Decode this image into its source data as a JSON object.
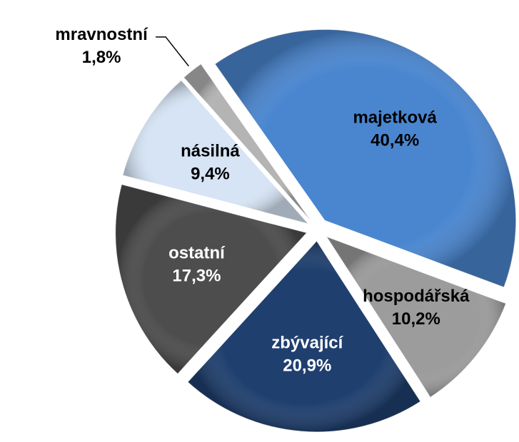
{
  "chart_data": {
    "type": "pie",
    "categories": [
      "majetková",
      "hospodářská",
      "zbývající",
      "ostatní",
      "násilná",
      "mravnostní"
    ],
    "values": [
      40.4,
      10.2,
      20.9,
      17.3,
      9.4,
      1.8
    ],
    "value_labels": [
      "40,4%",
      "10,2%",
      "20,9%",
      "17,3%",
      "9,4%",
      "1,8%"
    ],
    "colors": [
      "#4a86d0",
      "#9c9c9c",
      "#1f3f6e",
      "#4d4d4d",
      "#d6e4f5",
      "#b4b4b4"
    ],
    "exploded": true
  }
}
